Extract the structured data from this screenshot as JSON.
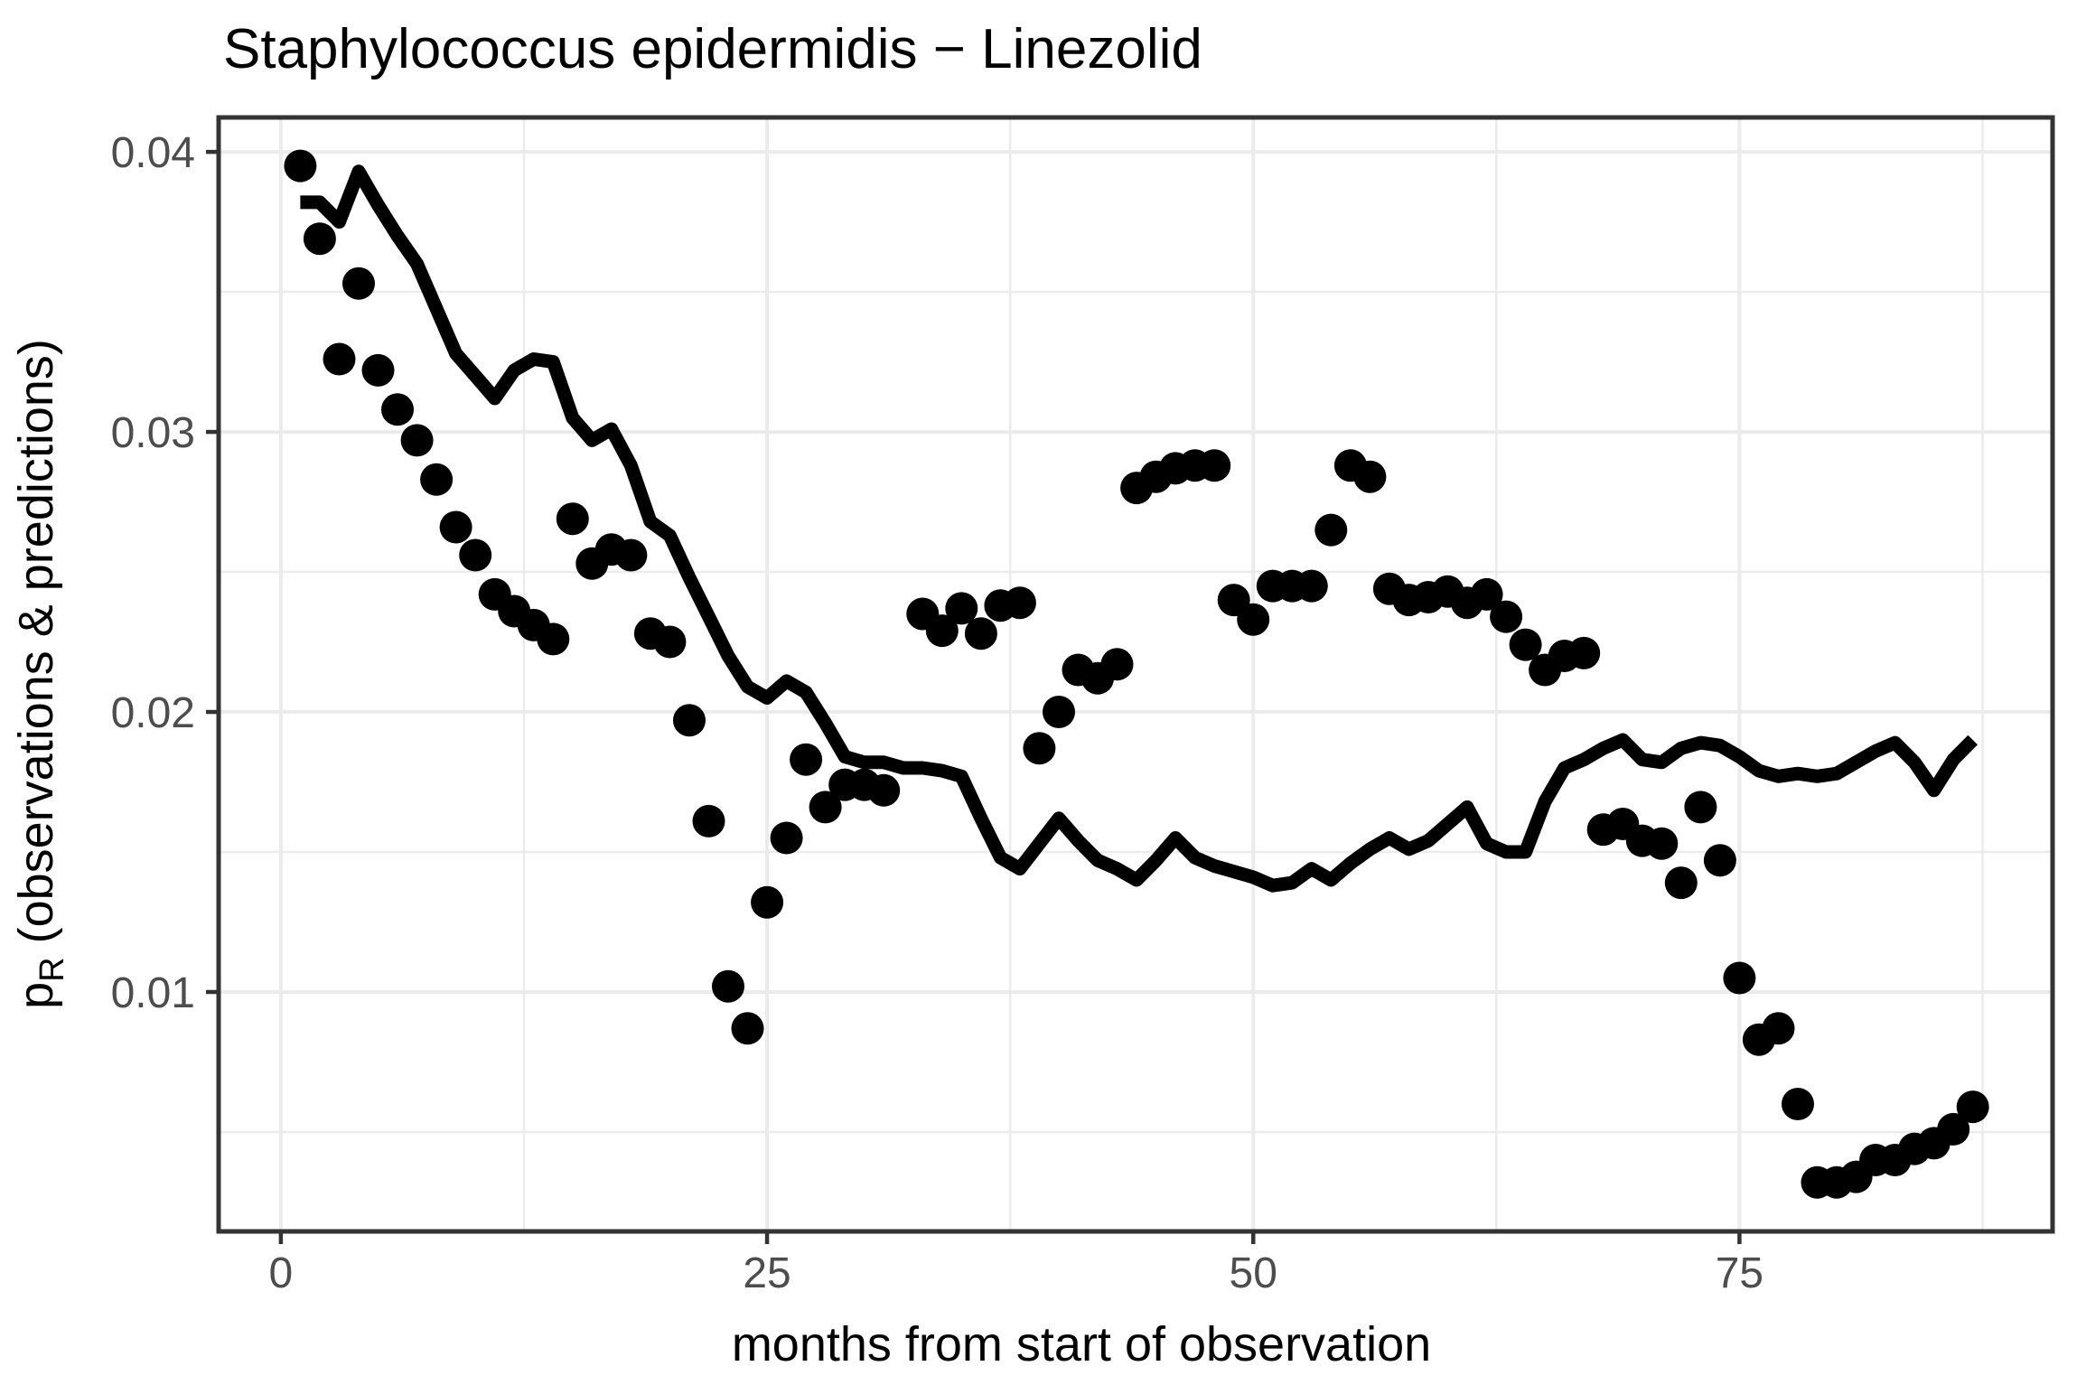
{
  "title": "Staphylococcus epidermidis − Linezolid",
  "chart_data": {
    "type": "scatter",
    "title": "Staphylococcus epidermidis − Linezolid",
    "xlabel": "months from start of observation",
    "ylabel": "pR (observations & predictions)",
    "ylabel_parts": {
      "pre": "p",
      "sub": "R",
      "post": " (observations & predictions)"
    },
    "xlim": [
      -3.2,
      91.1
    ],
    "ylim": [
      0.00145,
      0.04123
    ],
    "x_major_ticks": [
      0,
      25,
      50,
      75
    ],
    "x_tick_labels": [
      "0",
      "25",
      "50",
      "75"
    ],
    "x_minor_ticks": [
      12.5,
      37.5,
      62.5,
      87.5
    ],
    "y_major_ticks": [
      0.01,
      0.02,
      0.03,
      0.04
    ],
    "y_tick_labels": [
      "0.01",
      "0.02",
      "0.03",
      "0.04"
    ],
    "y_minor_ticks": [
      0.005,
      0.015,
      0.025,
      0.035
    ],
    "grid": true,
    "legend": "none",
    "colors": {
      "points": "#000000",
      "line": "#000000",
      "grid": "#ebebeb",
      "panel_border": "#333333",
      "tick_mark": "#333333",
      "tick_text": "#4d4d4d",
      "background": "#ffffff"
    },
    "series": [
      {
        "name": "observations",
        "style": "points",
        "points": [
          [
            1,
            0.0395
          ],
          [
            2,
            0.0369
          ],
          [
            3,
            0.0326
          ],
          [
            4,
            0.0353
          ],
          [
            5,
            0.0322
          ],
          [
            6,
            0.0308
          ],
          [
            7,
            0.0297
          ],
          [
            8,
            0.0283
          ],
          [
            9,
            0.0266
          ],
          [
            10,
            0.0256
          ],
          [
            11,
            0.0242
          ],
          [
            12,
            0.0236
          ],
          [
            13,
            0.0231
          ],
          [
            14,
            0.0226
          ],
          [
            15,
            0.0269
          ],
          [
            16,
            0.0253
          ],
          [
            17,
            0.0258
          ],
          [
            18,
            0.0256
          ],
          [
            19,
            0.0228
          ],
          [
            20,
            0.0225
          ],
          [
            21,
            0.0197
          ],
          [
            22,
            0.0161
          ],
          [
            23,
            0.0102
          ],
          [
            24,
            0.0087
          ],
          [
            25,
            0.0132
          ],
          [
            26,
            0.0155
          ],
          [
            27,
            0.0183
          ],
          [
            28,
            0.0166
          ],
          [
            29,
            0.0174
          ],
          [
            30,
            0.0174
          ],
          [
            31,
            0.0172
          ],
          [
            33,
            0.0235
          ],
          [
            34,
            0.0229
          ],
          [
            35,
            0.0237
          ],
          [
            36,
            0.0228
          ],
          [
            37,
            0.0238
          ],
          [
            38,
            0.0239
          ],
          [
            39,
            0.0187
          ],
          [
            40,
            0.02
          ],
          [
            41,
            0.0215
          ],
          [
            42,
            0.0212
          ],
          [
            43,
            0.0217
          ],
          [
            44,
            0.028
          ],
          [
            45,
            0.0284
          ],
          [
            46,
            0.0287
          ],
          [
            47,
            0.0288
          ],
          [
            48,
            0.0288
          ],
          [
            49,
            0.024
          ],
          [
            50,
            0.0233
          ],
          [
            51,
            0.0245
          ],
          [
            52,
            0.0245
          ],
          [
            53,
            0.0245
          ],
          [
            54,
            0.0265
          ],
          [
            55,
            0.0288
          ],
          [
            56,
            0.0284
          ],
          [
            57,
            0.0244
          ],
          [
            58,
            0.024
          ],
          [
            59,
            0.0241
          ],
          [
            60,
            0.0243
          ],
          [
            61,
            0.0239
          ],
          [
            62,
            0.0242
          ],
          [
            63,
            0.0234
          ],
          [
            64,
            0.0224
          ],
          [
            65,
            0.0215
          ],
          [
            66,
            0.022
          ],
          [
            67,
            0.0221
          ],
          [
            68,
            0.0158
          ],
          [
            69,
            0.016
          ],
          [
            70,
            0.0154
          ],
          [
            71,
            0.0153
          ],
          [
            72,
            0.0139
          ],
          [
            73,
            0.0166
          ],
          [
            74,
            0.0147
          ],
          [
            75,
            0.0105
          ],
          [
            76,
            0.0083
          ],
          [
            77,
            0.0087
          ],
          [
            78,
            0.006
          ],
          [
            79,
            0.0032
          ],
          [
            80,
            0.0032
          ],
          [
            81,
            0.0034
          ],
          [
            82,
            0.004
          ],
          [
            83,
            0.004
          ],
          [
            84,
            0.0044
          ],
          [
            85,
            0.0046
          ],
          [
            86,
            0.0051
          ],
          [
            87,
            0.0059
          ]
        ]
      },
      {
        "name": "predictions",
        "style": "line",
        "points": [
          [
            1,
            0.0382
          ],
          [
            2,
            0.0382
          ],
          [
            3,
            0.0375
          ],
          [
            4,
            0.0393
          ],
          [
            5,
            0.0381
          ],
          [
            6,
            0.037
          ],
          [
            7,
            0.036
          ],
          [
            8,
            0.0344
          ],
          [
            9,
            0.0328
          ],
          [
            10,
            0.032
          ],
          [
            11,
            0.0312
          ],
          [
            12,
            0.0322
          ],
          [
            13,
            0.0326
          ],
          [
            14,
            0.0325
          ],
          [
            15,
            0.0305
          ],
          [
            16,
            0.0297
          ],
          [
            17,
            0.0301
          ],
          [
            18,
            0.0288
          ],
          [
            19,
            0.0268
          ],
          [
            20,
            0.0263
          ],
          [
            21,
            0.0248
          ],
          [
            22,
            0.0234
          ],
          [
            23,
            0.022
          ],
          [
            24,
            0.0209
          ],
          [
            25,
            0.0205
          ],
          [
            26,
            0.0211
          ],
          [
            27,
            0.0207
          ],
          [
            28,
            0.0196
          ],
          [
            29,
            0.0184
          ],
          [
            30,
            0.0182
          ],
          [
            31,
            0.0182
          ],
          [
            32,
            0.018
          ],
          [
            33,
            0.018
          ],
          [
            34,
            0.0179
          ],
          [
            35,
            0.0177
          ],
          [
            36,
            0.0162
          ],
          [
            37,
            0.0148
          ],
          [
            38,
            0.0144
          ],
          [
            39,
            0.0153
          ],
          [
            40,
            0.0162
          ],
          [
            41,
            0.0154
          ],
          [
            42,
            0.0147
          ],
          [
            43,
            0.0144
          ],
          [
            44,
            0.014
          ],
          [
            45,
            0.0147
          ],
          [
            46,
            0.0155
          ],
          [
            47,
            0.0148
          ],
          [
            48,
            0.0145
          ],
          [
            49,
            0.0143
          ],
          [
            50,
            0.0141
          ],
          [
            51,
            0.0138
          ],
          [
            52,
            0.0139
          ],
          [
            53,
            0.0144
          ],
          [
            54,
            0.014
          ],
          [
            55,
            0.0146
          ],
          [
            56,
            0.0151
          ],
          [
            57,
            0.0155
          ],
          [
            58,
            0.0151
          ],
          [
            59,
            0.0154
          ],
          [
            60,
            0.016
          ],
          [
            61,
            0.0166
          ],
          [
            62,
            0.0153
          ],
          [
            63,
            0.015
          ],
          [
            64,
            0.015
          ],
          [
            65,
            0.0168
          ],
          [
            66,
            0.018
          ],
          [
            67,
            0.0183
          ],
          [
            68,
            0.0187
          ],
          [
            69,
            0.019
          ],
          [
            70,
            0.0183
          ],
          [
            71,
            0.0182
          ],
          [
            72,
            0.0187
          ],
          [
            73,
            0.0189
          ],
          [
            74,
            0.0188
          ],
          [
            75,
            0.0184
          ],
          [
            76,
            0.0179
          ],
          [
            77,
            0.0177
          ],
          [
            78,
            0.0178
          ],
          [
            79,
            0.0177
          ],
          [
            80,
            0.0178
          ],
          [
            81,
            0.0182
          ],
          [
            82,
            0.0186
          ],
          [
            83,
            0.0189
          ],
          [
            84,
            0.0182
          ],
          [
            85,
            0.0172
          ],
          [
            86,
            0.0183
          ],
          [
            87,
            0.019
          ]
        ]
      }
    ]
  }
}
